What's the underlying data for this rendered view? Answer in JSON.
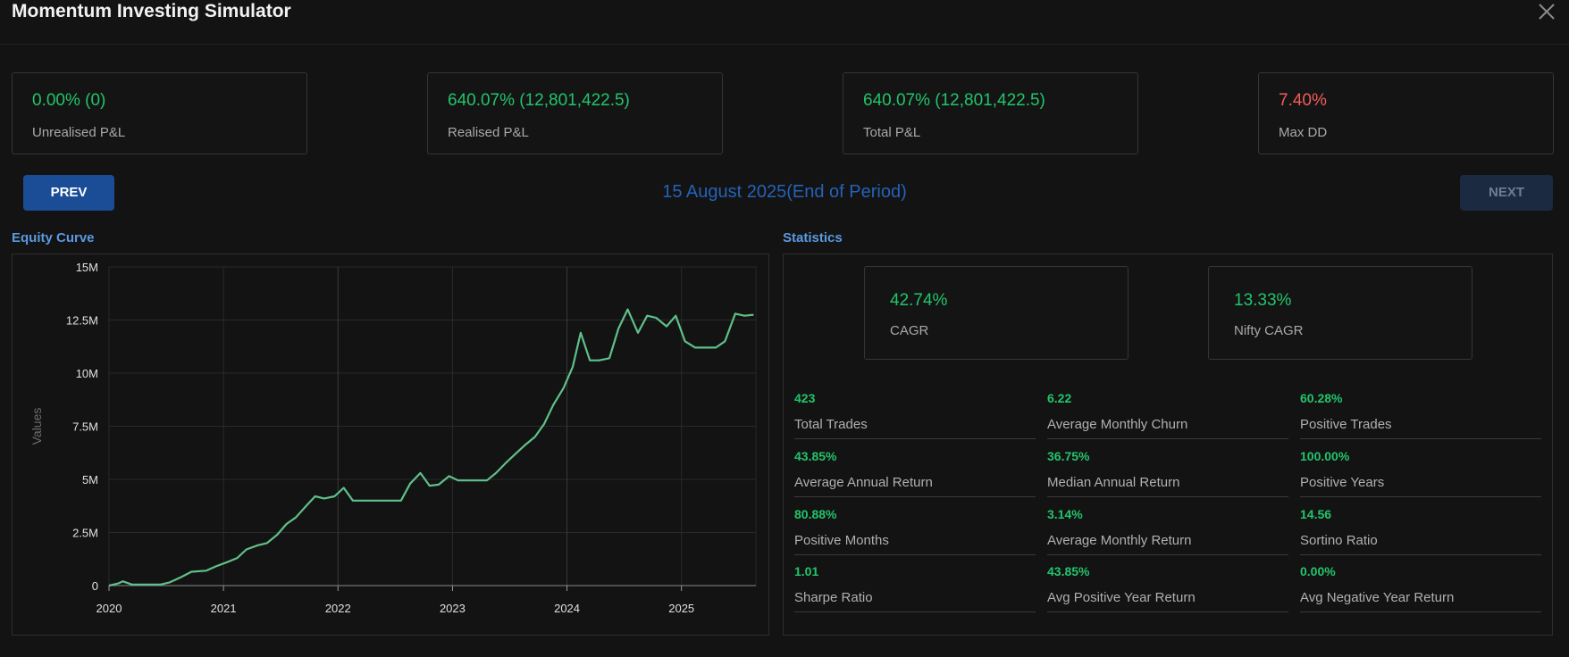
{
  "app": {
    "title": "Momentum Investing Simulator"
  },
  "summary_cards": [
    {
      "value": "0.00% (0)",
      "label": "Unrealised P&L",
      "tone": "pos"
    },
    {
      "value": "640.07% (12,801,422.5)",
      "label": "Realised P&L",
      "tone": "pos"
    },
    {
      "value": "640.07% (12,801,422.5)",
      "label": "Total P&L",
      "tone": "pos"
    },
    {
      "value": "7.40%",
      "label": "Max DD",
      "tone": "neg"
    }
  ],
  "nav": {
    "prev_label": "PREV",
    "next_label": "NEXT",
    "period_text": "15 August 2025(End of Period)"
  },
  "equity_curve": {
    "section_title": "Equity Curve"
  },
  "statistics": {
    "section_title": "Statistics",
    "headline": [
      {
        "value": "42.74%",
        "label": "CAGR"
      },
      {
        "value": "13.33%",
        "label": "Nifty CAGR"
      }
    ],
    "grid": [
      {
        "value": "423",
        "label": "Total Trades"
      },
      {
        "value": "6.22",
        "label": "Average Monthly Churn"
      },
      {
        "value": "60.28%",
        "label": "Positive Trades"
      },
      {
        "value": "43.85%",
        "label": "Average Annual Return"
      },
      {
        "value": "36.75%",
        "label": "Median Annual Return"
      },
      {
        "value": "100.00%",
        "label": "Positive Years"
      },
      {
        "value": "80.88%",
        "label": "Positive Months"
      },
      {
        "value": "3.14%",
        "label": "Average Monthly Return"
      },
      {
        "value": "14.56",
        "label": "Sortino Ratio"
      },
      {
        "value": "1.01",
        "label": "Sharpe Ratio"
      },
      {
        "value": "43.85%",
        "label": "Avg Positive Year Return"
      },
      {
        "value": "0.00%",
        "label": "Avg Negative Year Return"
      }
    ]
  },
  "colors": {
    "positive": "#22c46b",
    "negative": "#f25c5c",
    "accent": "#5a9ae0",
    "line": "#5fc08a",
    "primary_button": "#1a4d96"
  },
  "icons": {
    "close": "close-icon"
  },
  "chart_data": {
    "type": "line",
    "title": "",
    "xlabel": "",
    "ylabel": "Values",
    "xlim": [
      2020.0,
      2025.65
    ],
    "ylim": [
      0,
      15000000
    ],
    "x_ticks": [
      2020,
      2021,
      2022,
      2023,
      2024,
      2025
    ],
    "x_tick_labels": [
      "2020",
      "2021",
      "2022",
      "2023",
      "2024",
      "2025"
    ],
    "y_ticks": [
      0,
      2500000,
      5000000,
      7500000,
      10000000,
      12500000,
      15000000
    ],
    "y_tick_labels": [
      "0",
      "2.5M",
      "5M",
      "7.5M",
      "10M",
      "12.5M",
      "15M"
    ],
    "grid": true,
    "series": [
      {
        "color": "#5fc08a",
        "points": [
          [
            2020.0,
            0
          ],
          [
            2020.08,
            100000
          ],
          [
            2020.12,
            200000
          ],
          [
            2020.2,
            50000
          ],
          [
            2020.3,
            50000
          ],
          [
            2020.45,
            50000
          ],
          [
            2020.53,
            150000
          ],
          [
            2020.63,
            400000
          ],
          [
            2020.72,
            650000
          ],
          [
            2020.85,
            700000
          ],
          [
            2020.93,
            900000
          ],
          [
            2021.03,
            1100000
          ],
          [
            2021.12,
            1300000
          ],
          [
            2021.2,
            1700000
          ],
          [
            2021.3,
            1900000
          ],
          [
            2021.38,
            2000000
          ],
          [
            2021.47,
            2400000
          ],
          [
            2021.55,
            2900000
          ],
          [
            2021.63,
            3200000
          ],
          [
            2021.73,
            3800000
          ],
          [
            2021.8,
            4200000
          ],
          [
            2021.88,
            4100000
          ],
          [
            2021.97,
            4200000
          ],
          [
            2022.05,
            4600000
          ],
          [
            2022.13,
            4000000
          ],
          [
            2022.22,
            4000000
          ],
          [
            2022.55,
            4000000
          ],
          [
            2022.63,
            4800000
          ],
          [
            2022.72,
            5300000
          ],
          [
            2022.8,
            4700000
          ],
          [
            2022.88,
            4750000
          ],
          [
            2022.97,
            5150000
          ],
          [
            2023.05,
            4950000
          ],
          [
            2023.15,
            4950000
          ],
          [
            2023.3,
            4950000
          ],
          [
            2023.38,
            5300000
          ],
          [
            2023.47,
            5800000
          ],
          [
            2023.55,
            6200000
          ],
          [
            2023.63,
            6600000
          ],
          [
            2023.72,
            7000000
          ],
          [
            2023.8,
            7600000
          ],
          [
            2023.88,
            8500000
          ],
          [
            2023.97,
            9300000
          ],
          [
            2024.05,
            10300000
          ],
          [
            2024.12,
            11900000
          ],
          [
            2024.2,
            10600000
          ],
          [
            2024.28,
            10600000
          ],
          [
            2024.37,
            10700000
          ],
          [
            2024.45,
            12100000
          ],
          [
            2024.53,
            13000000
          ],
          [
            2024.62,
            11900000
          ],
          [
            2024.7,
            12700000
          ],
          [
            2024.78,
            12600000
          ],
          [
            2024.87,
            12200000
          ],
          [
            2024.95,
            12700000
          ],
          [
            2025.03,
            11500000
          ],
          [
            2025.12,
            11200000
          ],
          [
            2025.2,
            11200000
          ],
          [
            2025.3,
            11200000
          ],
          [
            2025.38,
            11500000
          ],
          [
            2025.47,
            12800000
          ],
          [
            2025.55,
            12700000
          ],
          [
            2025.63,
            12750000
          ]
        ]
      }
    ]
  }
}
